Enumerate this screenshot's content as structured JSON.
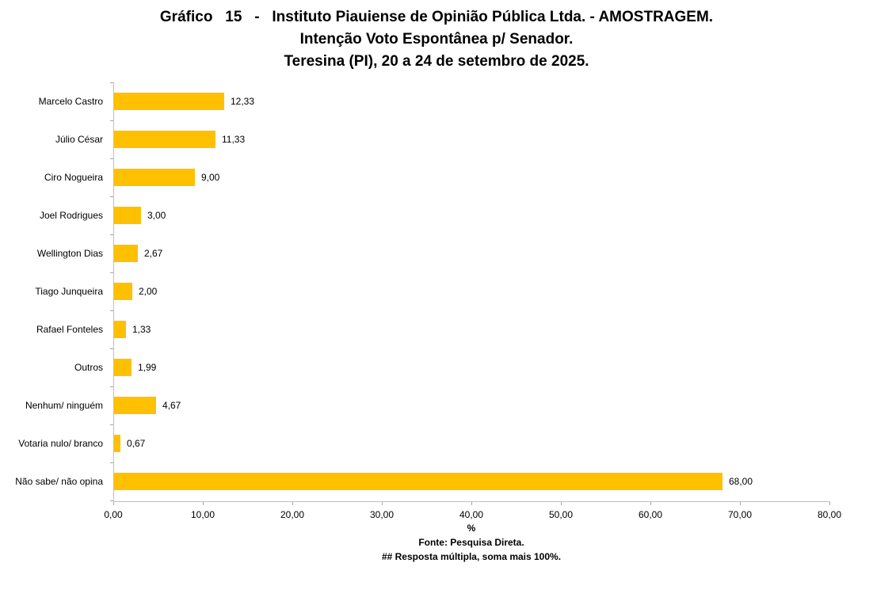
{
  "title": {
    "line1": "Gráfico   15   -   Instituto Piauiense de Opinião Pública Ltda. - AMOSTRAGEM.",
    "line2": "Intenção Voto Espontânea p/ Senador.",
    "line3": "Teresina (PI), 20 a 24 de setembro de 2025."
  },
  "chart_data": {
    "type": "bar",
    "orientation": "horizontal",
    "categories": [
      "Marcelo Castro",
      "Júlio César",
      "Ciro Nogueira",
      "Joel Rodrigues",
      "Wellington Dias",
      "Tiago Junqueira",
      "Rafael Fonteles",
      "Outros",
      "Nenhum/ ninguém",
      "Votaria nulo/ branco",
      "Não sabe/ não opina"
    ],
    "values": [
      12.33,
      11.33,
      9.0,
      3.0,
      2.67,
      2.0,
      1.33,
      1.99,
      4.67,
      0.67,
      68.0
    ],
    "value_labels": [
      "12,33",
      "11,33",
      "9,00",
      "3,00",
      "2,67",
      "2,00",
      "1,33",
      "1,99",
      "4,67",
      "0,67",
      "68,00"
    ],
    "xlabel": "%",
    "xlim": [
      0,
      80
    ],
    "x_ticks": [
      0,
      10,
      20,
      30,
      40,
      50,
      60,
      70,
      80
    ],
    "x_tick_labels": [
      "0,00",
      "10,00",
      "20,00",
      "30,00",
      "40,00",
      "50,00",
      "60,00",
      "70,00",
      "80,00"
    ],
    "bar_color": "#FFC000",
    "axis_color": "#BFBFBF",
    "grid": "off",
    "legend": "none"
  },
  "footer": {
    "source": "Fonte: Pesquisa Direta.",
    "note": "## Resposta múltipla, soma mais 100%."
  }
}
